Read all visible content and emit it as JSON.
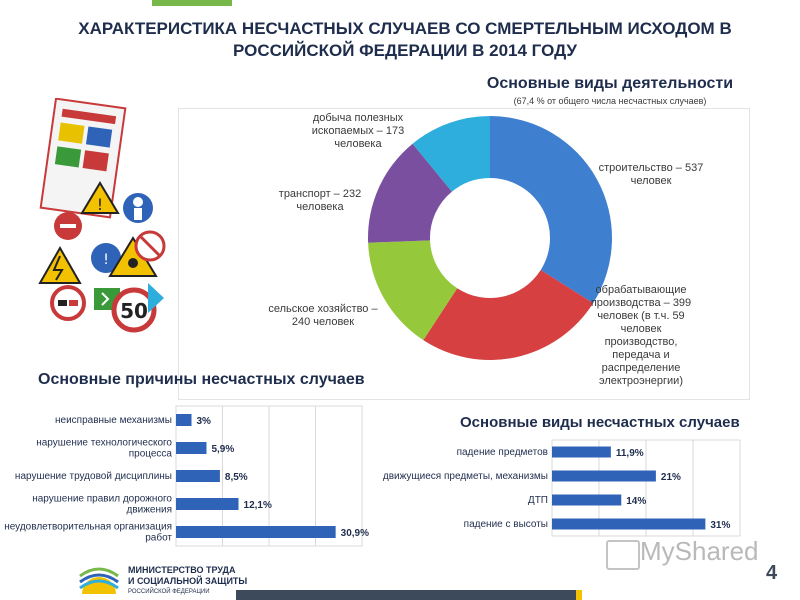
{
  "title": "ХАРАКТЕРИСТИКА НЕСЧАСТНЫХ СЛУЧАЕВ СО СМЕРТЕЛЬНЫМ ИСХОДОМ В РОССИЙСКОЙ ФЕДЕРАЦИИ В 2014 ГОДУ",
  "chart_data": [
    {
      "type": "pie",
      "title": "Основные виды деятельности",
      "subtitle": "(67,4 % от общего числа несчастных случаев)",
      "categories": [
        "строительство – 537 человек",
        "обрабатывающие производства – 399 человек (в т.ч. 59 человек производство, передача и распределение электроэнергии)",
        "сельское хозяйство – 240 человек",
        "транспорт – 232 человека",
        "добыча полезных ископаемых – 173 человека"
      ],
      "values": [
        537,
        399,
        240,
        232,
        173
      ],
      "colors": [
        "#3f7fd0",
        "#d64040",
        "#96c83c",
        "#7a4fa0",
        "#2eaedc"
      ]
    },
    {
      "type": "bar",
      "orientation": "horizontal",
      "title": "Основные причины несчастных случаев",
      "categories": [
        "неисправные механизмы",
        "нарушение технологического процесса",
        "нарушение трудовой дисциплины",
        "нарушение правил дорожного движения",
        "неудовлетворительная организация работ"
      ],
      "values": [
        3,
        5.9,
        8.5,
        12.1,
        30.9
      ],
      "value_labels": [
        "3%",
        "5,9%",
        "8,5%",
        "12,1%",
        "30,9%"
      ],
      "color": "#2f63b8"
    },
    {
      "type": "bar",
      "orientation": "horizontal",
      "title": "Основные виды несчастных случаев",
      "categories": [
        "падение предметов",
        "движущиеся предметы, механизмы",
        "ДТП",
        "падение с высоты"
      ],
      "values": [
        11.9,
        21,
        14,
        31
      ],
      "value_labels": [
        "11,9%",
        "21%",
        "14%",
        "31%"
      ],
      "color": "#2f63b8"
    }
  ],
  "donut_labels": {
    "construction": "строительство – 537 человек",
    "manufacturing": "обрабатывающие производства – 399 человек (в т.ч. 59 человек производство, передача и распределение электроэнергии)",
    "agriculture": "сельское хозяйство – 240 человек",
    "transport": "транспорт – 232 человека",
    "mining": "добыча полезных ископаемых – 173 человека"
  },
  "footer": {
    "org_line1": "МИНИСТЕРСТВО ТРУДА",
    "org_line2": "И СОЦИАЛЬНОЙ ЗАЩИТЫ",
    "org_line3": "РОССИЙСКОЙ ФЕДЕРАЦИИ",
    "page_number": "4",
    "watermark": "MyShared"
  },
  "icons": {
    "safety_signs": "safety-signs-collage-icon",
    "ministry_logo": "ministry-sun-logo-icon",
    "watermark_icon": "presentation-board-icon"
  }
}
